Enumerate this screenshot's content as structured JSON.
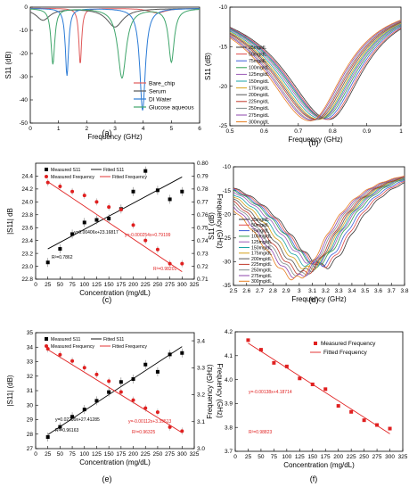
{
  "figure": {
    "panel_letters": [
      "(a)",
      "(b)",
      "(c)",
      "(d)",
      "(e)",
      "(f)"
    ]
  },
  "chart_data": [
    {
      "panel": "(a)",
      "type": "line",
      "xlabel": "Frequency (GHz)",
      "ylabel": "S11 (dB)",
      "xlim": [
        0,
        6
      ],
      "ylim": [
        -50,
        0
      ],
      "xticks": [
        0,
        1,
        2,
        3,
        4,
        5,
        6
      ],
      "yticks": [
        -50,
        -40,
        -30,
        -20,
        -10,
        0
      ],
      "legend_position": "bottom-right",
      "series": [
        {
          "name": "Bare_chip",
          "color": "#e05a5a",
          "dips": [
            [
              1.77,
              -24
            ],
            [
              4.5,
              -2
            ]
          ]
        },
        {
          "name": "Serum",
          "color": "#555555",
          "dips": [
            [
              0.45,
              -5
            ],
            [
              3.0,
              -8
            ]
          ]
        },
        {
          "name": "DI Water",
          "color": "#2b7bd6",
          "dips": [
            [
              1.3,
              -29
            ],
            [
              3.98,
              -44
            ]
          ]
        },
        {
          "name": "Glucose aqueous",
          "color": "#3fa56b",
          "dips": [
            [
              0.8,
              -24
            ],
            [
              3.25,
              -30
            ],
            [
              5.0,
              -23
            ]
          ]
        }
      ]
    },
    {
      "panel": "(b)",
      "type": "line",
      "xlabel": "Frequency (GHz)",
      "ylabel": "S11 (dB)",
      "xlim": [
        0.5,
        1.0
      ],
      "ylim": [
        -25,
        -10
      ],
      "xticks": [
        0.5,
        0.6,
        0.7,
        0.8,
        0.9,
        1.0
      ],
      "yticks": [
        -25,
        -20,
        -15,
        -10
      ],
      "legend_position": "left",
      "concentrations": [
        "25mg/dL",
        "50mg/dL",
        "75mg/dL",
        "100mg/dL",
        "125mg/dL",
        "150mg/dL",
        "175mg/dL",
        "200mg/dL",
        "225mg/dL",
        "250mg/dL",
        "275mg/dL",
        "300mg/dL"
      ],
      "colors": [
        "#333333",
        "#e04b4b",
        "#3a5bd9",
        "#2e9e4f",
        "#9b59b6",
        "#1aa3a3",
        "#d4a017",
        "#555555",
        "#c0392b",
        "#7f8c8d",
        "#8e44ad",
        "#e67e22"
      ],
      "min_freq": [
        0.79,
        0.785,
        0.78,
        0.775,
        0.77,
        0.765,
        0.76,
        0.755,
        0.75,
        0.745,
        0.74,
        0.735
      ],
      "min_s11": [
        -24.2,
        -24.2,
        -24.1,
        -24.0,
        -24.0,
        -24.1,
        -24.2,
        -24.2,
        -24.2,
        -24.3,
        -24.3,
        -24.4
      ]
    },
    {
      "panel": "(c)",
      "type": "scatter",
      "xlabel": "Concentration (mg/dL)",
      "ylabel": "|S11| dB",
      "y2label": "Frequency (GHz)",
      "xlim": [
        0,
        325
      ],
      "ylim": [
        22.8,
        24.6
      ],
      "y2lim": [
        0.71,
        0.8
      ],
      "xticks": [
        0,
        25,
        50,
        75,
        100,
        125,
        150,
        175,
        200,
        225,
        250,
        275,
        300,
        325
      ],
      "yticks": [
        22.8,
        23.0,
        23.2,
        23.4,
        23.6,
        23.8,
        24.0,
        24.2,
        24.4
      ],
      "y2ticks": [
        0.71,
        0.72,
        0.73,
        0.74,
        0.75,
        0.76,
        0.77,
        0.78,
        0.79,
        0.8
      ],
      "legend": [
        "Measured S11",
        "Fitted S11",
        "Measured Frequency",
        "Fitted Frequency"
      ],
      "x": [
        25,
        50,
        75,
        100,
        125,
        150,
        175,
        200,
        225,
        250,
        275,
        300
      ],
      "s11": [
        23.06,
        23.27,
        23.5,
        23.68,
        23.72,
        23.74,
        23.89,
        24.16,
        24.48,
        24.18,
        24.04,
        24.16
      ],
      "s11_fit": {
        "slope": 0.00406,
        "intercept": 23.16817
      },
      "freq": [
        0.785,
        0.782,
        0.778,
        0.775,
        0.77,
        0.766,
        0.764,
        0.752,
        0.74,
        0.733,
        0.722,
        0.722
      ],
      "freq_fit": {
        "slope": -0.000254,
        "intercept": 0.79199
      },
      "annotations": [
        "y=0.00406x+23.16817",
        "R²=0.7862",
        "y=-0.000254x+0.79199",
        "R²=0.98201"
      ]
    },
    {
      "panel": "(d)",
      "type": "line",
      "xlabel": "Frequency (GHz)",
      "ylabel": "S11 (dB)",
      "xlim": [
        2.5,
        3.8
      ],
      "ylim": [
        -35,
        -10
      ],
      "xticks": [
        2.5,
        2.6,
        2.7,
        2.8,
        2.9,
        3.0,
        3.1,
        3.2,
        3.3,
        3.4,
        3.5,
        3.6,
        3.7,
        3.8
      ],
      "yticks": [
        -35,
        -30,
        -25,
        -20,
        -15,
        -10
      ],
      "legend_position": "left",
      "concentrations": [
        "25mg/dL",
        "50mg/dL",
        "75mg/dL",
        "100mg/dL",
        "125mg/dL",
        "150mg/dL",
        "175mg/dL",
        "200mg/dL",
        "225mg/dL",
        "250mg/dL",
        "275mg/dL",
        "300mg/dL"
      ],
      "min_freq": [
        3.2,
        3.18,
        3.16,
        3.14,
        3.12,
        3.1,
        3.08,
        3.06,
        3.04,
        3.02,
        3.0,
        2.98
      ],
      "min_s11": [
        -31,
        -30.8,
        -30.6,
        -30.2,
        -30.4,
        -31,
        -31.5,
        -32,
        -32.5,
        -32.8,
        -33.2,
        -33.6
      ]
    },
    {
      "panel": "(e)",
      "type": "scatter",
      "xlabel": "Concentration (mg/dL)",
      "ylabel": "|S11| (dB)",
      "y2label": "Frequency (GHz)",
      "xlim": [
        0,
        325
      ],
      "ylim": [
        27,
        35
      ],
      "y2lim": [
        3.0,
        3.43
      ],
      "xticks": [
        0,
        25,
        50,
        75,
        100,
        125,
        150,
        175,
        200,
        225,
        250,
        275,
        300,
        325
      ],
      "yticks": [
        27,
        28,
        29,
        30,
        31,
        32,
        33,
        34,
        35
      ],
      "y2ticks": [
        3.0,
        3.1,
        3.2,
        3.3,
        3.4
      ],
      "legend": [
        "Measured S11",
        "Fitted S11",
        "Measured Frequency",
        "Fitted Frequency"
      ],
      "x": [
        25,
        50,
        75,
        100,
        125,
        150,
        175,
        200,
        225,
        250,
        275,
        300
      ],
      "s11": [
        27.8,
        28.5,
        29.2,
        29.7,
        30.3,
        30.9,
        31.6,
        31.8,
        32.8,
        32.3,
        33.5,
        33.6
      ],
      "s11_fit": {
        "slope": 0.02209,
        "intercept": 27.41285
      },
      "freq": [
        3.37,
        3.348,
        3.325,
        3.3,
        3.275,
        3.25,
        3.21,
        3.18,
        3.15,
        3.135,
        3.08,
        3.065
      ],
      "freq_fit": {
        "slope": -0.00112,
        "intercept": 3.39513
      },
      "annotations": [
        "y=0.02209x+27.41285",
        "R²=0.96163",
        "y=-0.00112x+3.39513",
        "R²=0.96325"
      ]
    },
    {
      "panel": "(f)",
      "type": "scatter",
      "xlabel": "Concentration (mg/dL)",
      "ylabel": "Frequency (GHz)",
      "xlim": [
        0,
        325
      ],
      "ylim": [
        3.7,
        4.2
      ],
      "xticks": [
        0,
        25,
        50,
        75,
        100,
        125,
        150,
        175,
        200,
        225,
        250,
        275,
        300,
        325
      ],
      "yticks": [
        3.7,
        3.8,
        3.9,
        4.0,
        4.1,
        4.2
      ],
      "legend": [
        "Measured Frequency",
        "Fitted Frequency"
      ],
      "x": [
        25,
        50,
        75,
        100,
        125,
        150,
        175,
        200,
        225,
        250,
        275,
        300
      ],
      "freq": [
        4.165,
        4.125,
        4.07,
        4.055,
        4.005,
        3.98,
        3.96,
        3.89,
        3.865,
        3.83,
        3.81,
        3.795
      ],
      "freq_fit": {
        "slope": -0.00138,
        "intercept": 4.18714
      },
      "annotations": [
        "y=-0.00138x+4.18714",
        "R²=0.98823"
      ]
    }
  ]
}
